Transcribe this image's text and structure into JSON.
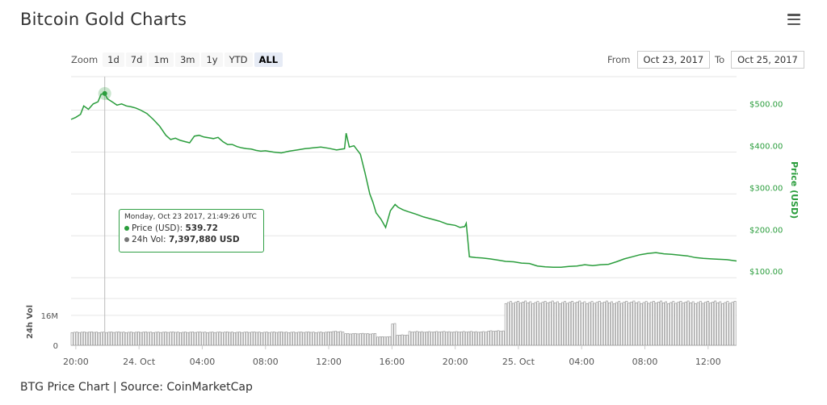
{
  "title": "Bitcoin Gold Charts",
  "menu_icon": "hamburger-menu-icon",
  "zoom": {
    "label": "Zoom",
    "buttons": [
      "1d",
      "7d",
      "1m",
      "3m",
      "1y",
      "YTD",
      "ALL"
    ],
    "active": "ALL"
  },
  "range": {
    "from_label": "From",
    "from_value": "Oct 23, 2017",
    "to_label": "To",
    "to_value": "Oct 25, 2017"
  },
  "tooltip": {
    "date": "Monday, Oct 23 2017, 21:49:26 UTC",
    "price_label": "Price (USD):",
    "price_value": "539.72",
    "vol_label": "24h Vol:",
    "vol_value": "7,397,880 USD"
  },
  "caption": "BTG Price Chart | Source: CoinMarketCap",
  "colors": {
    "price_line": "#2a9d3c",
    "volume_bar": "#8a8a8a",
    "grid": "#e6e6e6"
  },
  "chart_data": {
    "type": "line",
    "ylabel": "Price (USD)",
    "y_ticks": [
      "$100.00",
      "$200.00",
      "$300.00",
      "$400.00",
      "$500.00"
    ],
    "y_tick_values": [
      100,
      200,
      300,
      400,
      500
    ],
    "ylim": [
      60,
      580
    ],
    "x_ticks": [
      "20:00",
      "24. Oct",
      "04:00",
      "08:00",
      "12:00",
      "16:00",
      "20:00",
      "25. Oct",
      "04:00",
      "08:00",
      "12:00"
    ],
    "x_tick_hours": [
      20,
      24,
      28,
      32,
      36,
      40,
      44,
      48,
      52,
      56,
      60
    ],
    "x_range_hours": [
      19.7,
      61.8
    ],
    "price_series": {
      "name": "Price (USD)",
      "x_hours": [
        19.7,
        20.0,
        20.3,
        20.5,
        20.8,
        21.1,
        21.4,
        21.6,
        21.83,
        22.0,
        22.3,
        22.6,
        22.9,
        23.2,
        23.5,
        23.8,
        24.1,
        24.5,
        24.9,
        25.3,
        25.7,
        26.0,
        26.3,
        26.6,
        26.9,
        27.2,
        27.5,
        27.8,
        28.1,
        28.4,
        28.7,
        29.0,
        29.3,
        29.6,
        29.9,
        30.2,
        30.5,
        30.8,
        31.1,
        31.4,
        31.7,
        32.0,
        32.5,
        33.0,
        33.5,
        34.0,
        34.5,
        35.0,
        35.5,
        36.0,
        36.5,
        37.0,
        37.1,
        37.3,
        37.6,
        38.0,
        38.3,
        38.6,
        38.8,
        39.0,
        39.3,
        39.6,
        39.9,
        40.1,
        40.2,
        40.4,
        40.7,
        41.0,
        41.5,
        42.0,
        42.5,
        43.0,
        43.5,
        44.0,
        44.3,
        44.6,
        44.7,
        44.9,
        45.3,
        45.7,
        46.2,
        46.7,
        47.2,
        47.7,
        48.2,
        48.7,
        49.2,
        49.7,
        50.2,
        50.7,
        51.2,
        51.7,
        52.2,
        52.7,
        53.2,
        53.7,
        54.2,
        54.7,
        55.2,
        55.7,
        56.2,
        56.7,
        57.2,
        57.7,
        58.2,
        58.7,
        59.2,
        59.7,
        60.2,
        60.7,
        61.2,
        61.8
      ],
      "values": [
        478,
        483,
        490,
        510,
        502,
        515,
        520,
        538,
        539.7,
        527,
        520,
        512,
        515,
        510,
        508,
        505,
        500,
        492,
        478,
        462,
        440,
        430,
        433,
        428,
        425,
        422,
        438,
        440,
        436,
        434,
        432,
        435,
        425,
        418,
        418,
        413,
        410,
        408,
        407,
        404,
        402,
        403,
        400,
        398,
        402,
        405,
        408,
        410,
        412,
        409,
        405,
        408,
        445,
        412,
        415,
        395,
        350,
        300,
        280,
        255,
        240,
        220,
        260,
        270,
        275,
        268,
        262,
        258,
        252,
        245,
        240,
        235,
        228,
        225,
        220,
        222,
        230,
        150,
        148,
        147,
        145,
        142,
        139,
        138,
        135,
        134,
        128,
        126,
        125,
        125,
        127,
        128,
        131,
        129,
        131,
        132,
        138,
        145,
        150,
        155,
        158,
        160,
        157,
        156,
        154,
        152,
        148,
        146,
        145,
        144,
        143,
        140
      ]
    },
    "volume_series": {
      "name": "24h Vol",
      "y_ticks": [
        "0",
        "16M"
      ],
      "y_tick_values": [
        0,
        16000000
      ],
      "ylim": [
        0,
        25000000
      ],
      "x_hours_breaks": [
        19.7,
        36.0,
        37.0,
        39.0,
        40.0,
        41.0,
        46.0,
        47.0,
        61.8
      ],
      "values_millions": [
        7.0,
        7.3,
        6.2,
        4.5,
        5.5,
        7.2,
        7.6,
        23.0,
        24.3
      ]
    }
  }
}
